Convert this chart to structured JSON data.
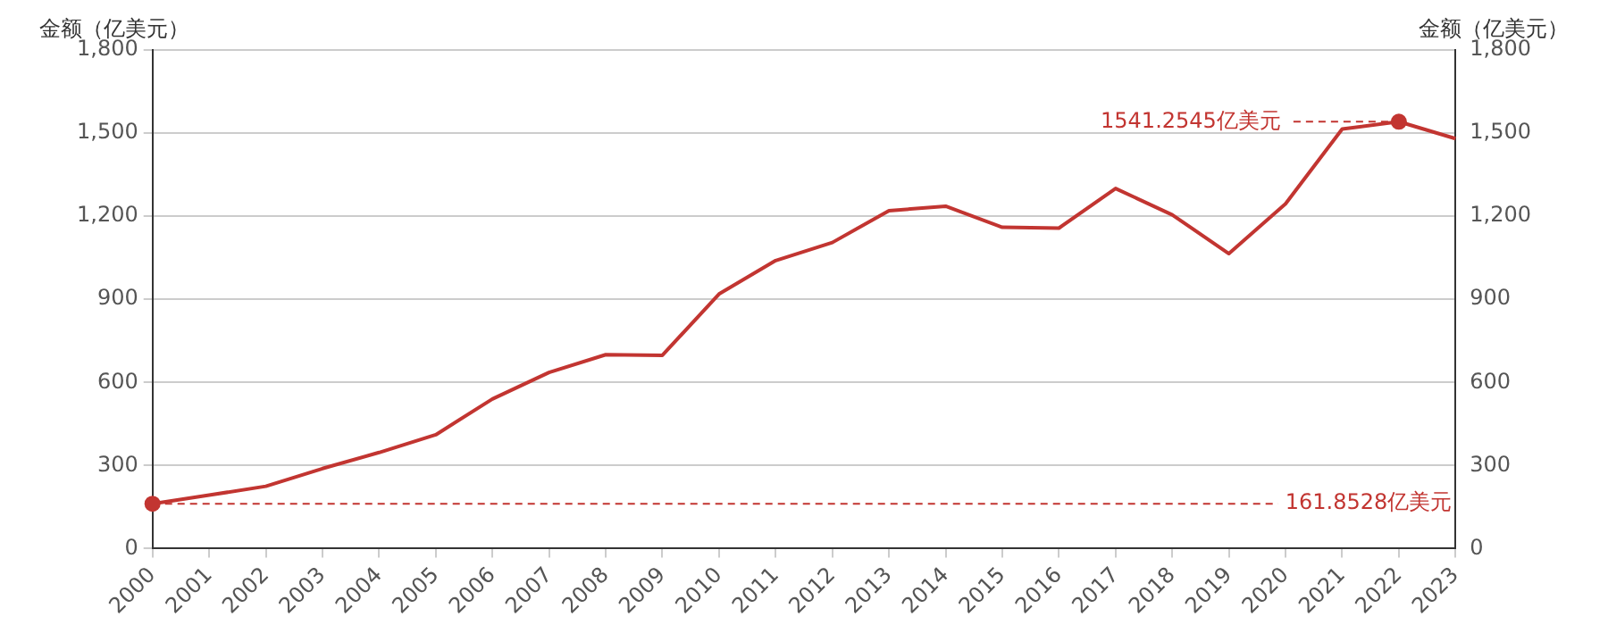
{
  "chart_data": {
    "type": "line",
    "ylabel": "金额（亿美元）",
    "y2label": "金额（亿美元）",
    "categories": [
      "2000",
      "2001",
      "2002",
      "2003",
      "2004",
      "2005",
      "2006",
      "2007",
      "2008",
      "2009",
      "2010",
      "2011",
      "2012",
      "2013",
      "2014",
      "2015",
      "2016",
      "2017",
      "2018",
      "2019",
      "2020",
      "2021",
      "2022",
      "2023"
    ],
    "series": [
      {
        "color": "#c23531",
        "values": [
          161.8528,
          193,
          225,
          289,
          347,
          411,
          540,
          636,
          700,
          698,
          919,
          1040,
          1105,
          1220,
          1236,
          1160,
          1157,
          1300,
          1205,
          1065,
          1245,
          1515,
          1541.2545,
          1480
        ]
      }
    ],
    "ylim": [
      0,
      1800
    ],
    "yticks": [
      0,
      300,
      600,
      900,
      {
        "value": 1200,
        "label": "1,200"
      },
      {
        "value": 1500,
        "label": "1,500"
      },
      {
        "value": 1800,
        "label": "1,800"
      }
    ],
    "y2lim": [
      0,
      1800
    ],
    "y2ticks": [
      0,
      300,
      600,
      900,
      {
        "value": 1200,
        "label": "1,200"
      },
      {
        "value": 1500,
        "label": "1,500"
      },
      {
        "value": 1800,
        "label": "1,800"
      }
    ],
    "ref_lines": [
      {
        "axis": "y",
        "value": 161.8528,
        "label": "161.8528亿美元",
        "color": "#c23531",
        "line_style": "dashed"
      }
    ],
    "annotations": [
      "1541.2545亿美元"
    ],
    "grid": "y",
    "legend": false,
    "marker": "none",
    "line_style": "solid"
  }
}
